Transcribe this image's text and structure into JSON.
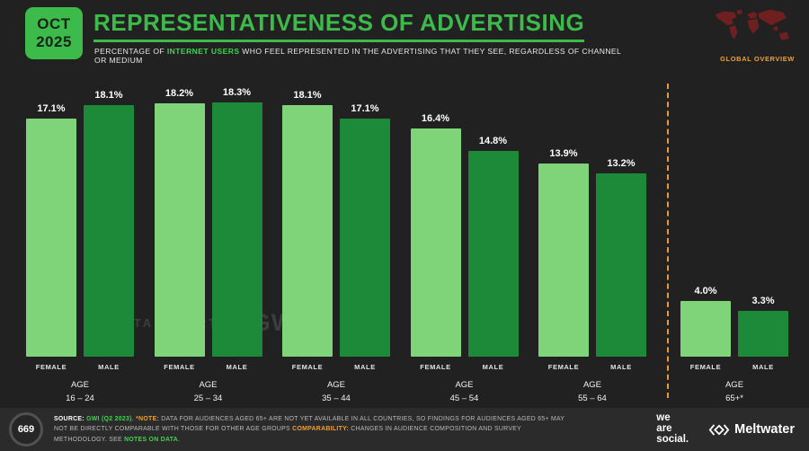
{
  "header": {
    "badge_month": "OCT",
    "badge_year": "2025",
    "title": "REPRESENTATIVENESS OF ADVERTISING",
    "subtitle": {
      "prefix": "PERCENTAGE OF ",
      "highlight": "INTERNET USERS",
      "suffix": " WHO FEEL REPRESENTED IN THE ADVERTISING THAT THEY SEE, REGARDLESS OF CHANNEL OR MEDIUM"
    },
    "global_overview_label": "GLOBAL OVERVIEW"
  },
  "watermark": {
    "datareportal": "DATAREPORTAL",
    "gwi": "GWI."
  },
  "chart_data": {
    "type": "bar",
    "title": "REPRESENTATIVENESS OF ADVERTISING",
    "category_label": "AGE",
    "categories": [
      "16 – 24",
      "25 – 34",
      "35 – 44",
      "45 – 54",
      "55 – 64",
      "65+*"
    ],
    "series": [
      {
        "name": "FEMALE",
        "color": "#7fd379",
        "values": [
          17.1,
          18.2,
          18.1,
          16.4,
          13.9,
          4.0
        ]
      },
      {
        "name": "MALE",
        "color": "#1d8a3a",
        "values": [
          18.1,
          18.3,
          17.1,
          14.8,
          13.2,
          3.3
        ]
      }
    ],
    "value_suffix": "%",
    "ylim": [
      0,
      19.5
    ],
    "grid": false,
    "legend_position": "below-bars",
    "separator_after_index": 4,
    "separator_color": "#e89a3c"
  },
  "footer": {
    "page_number": "669",
    "source_label": "SOURCE:",
    "source_text": " GWI (Q2 2023). ",
    "note_label": "*NOTE:",
    "note_text": " DATA FOR AUDIENCES AGED 65+ ARE NOT YET AVAILABLE IN ALL COUNTRIES, SO FINDINGS FOR AUDIENCES AGED 65+ MAY NOT BE DIRECTLY COMPARABLE WITH THOSE FOR OTHER AGE GROUPS ",
    "comparability_label": "COMPARABILITY:",
    "comparability_text": " CHANGES IN AUDIENCE COMPOSITION AND SURVEY METHODOLOGY. SEE ",
    "notes_link": "NOTES ON DATA",
    "period": "."
  },
  "brands": {
    "we_are_social": {
      "line1": "we",
      "line2": "are",
      "line3": "social."
    },
    "meltwater": "Meltwater"
  }
}
